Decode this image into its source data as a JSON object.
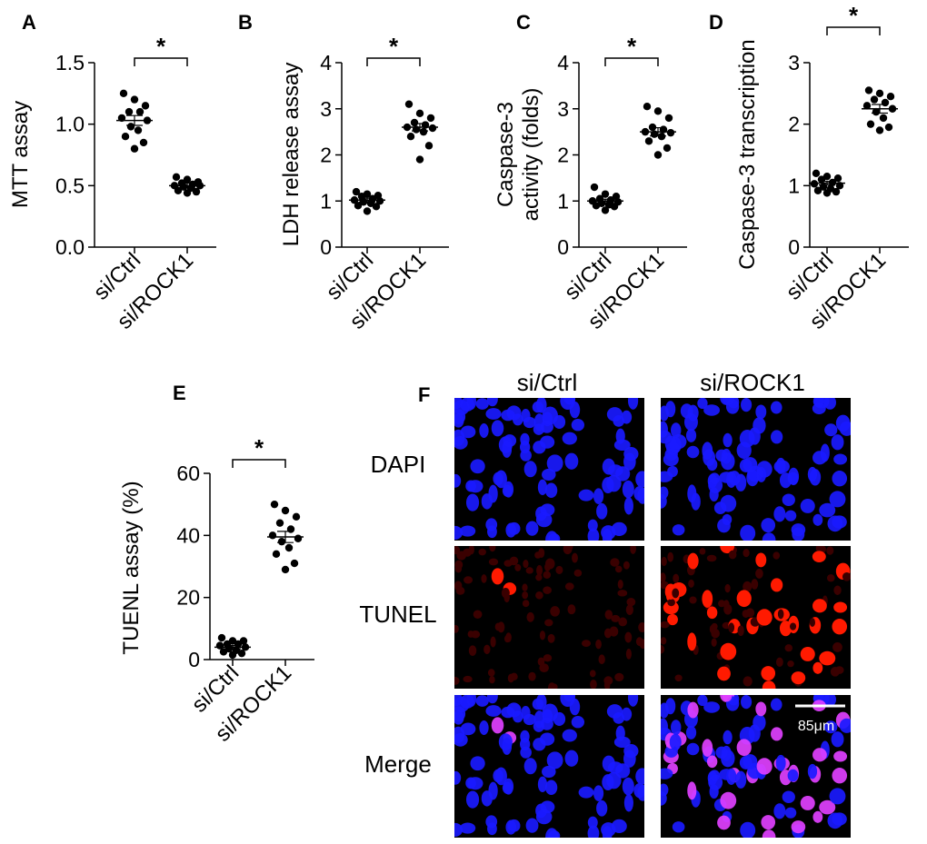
{
  "chart_data": [
    {
      "panel": "A",
      "type": "scatter",
      "ylabel": "MTT assay",
      "ylim": [
        0,
        1.5
      ],
      "yticks": [
        "0.0",
        "0.5",
        "1.0",
        "1.5"
      ],
      "ytick_values": [
        0,
        0.5,
        1.0,
        1.5
      ],
      "categories": [
        "si/Ctrl",
        "si/ROCK1"
      ],
      "significance": "*",
      "series": [
        {
          "category": "si/Ctrl",
          "mean": 1.03,
          "sem": 0.04,
          "values": [
            1.25,
            1.2,
            1.15,
            1.1,
            1.1,
            1.05,
            1.03,
            0.98,
            0.95,
            0.9,
            0.85,
            0.8
          ]
        },
        {
          "category": "si/ROCK1",
          "mean": 0.5,
          "sem": 0.02,
          "values": [
            0.57,
            0.55,
            0.53,
            0.52,
            0.51,
            0.5,
            0.5,
            0.49,
            0.48,
            0.46,
            0.45,
            0.44
          ]
        }
      ]
    },
    {
      "panel": "B",
      "type": "scatter",
      "ylabel": "LDH release assay",
      "ylim": [
        0,
        4
      ],
      "yticks": [
        "0",
        "1",
        "2",
        "3",
        "4"
      ],
      "ytick_values": [
        0,
        1,
        2,
        3,
        4
      ],
      "categories": [
        "si/Ctrl",
        "si/ROCK1"
      ],
      "significance": "*",
      "series": [
        {
          "category": "si/Ctrl",
          "mean": 1.02,
          "sem": 0.04,
          "values": [
            1.2,
            1.15,
            1.12,
            1.1,
            1.05,
            1.02,
            1.0,
            0.98,
            0.95,
            0.9,
            0.88,
            0.78
          ]
        },
        {
          "category": "si/ROCK1",
          "mean": 2.6,
          "sem": 0.08,
          "values": [
            3.1,
            2.9,
            2.8,
            2.7,
            2.65,
            2.6,
            2.58,
            2.55,
            2.5,
            2.4,
            2.2,
            1.9
          ]
        }
      ]
    },
    {
      "panel": "C",
      "type": "scatter",
      "ylabel": "Caspase-3 activity (folds)",
      "ylabel_lines": [
        "Caspase-3",
        "activity (folds)"
      ],
      "ylim": [
        0,
        4
      ],
      "yticks": [
        "0",
        "1",
        "2",
        "3",
        "4"
      ],
      "ytick_values": [
        0,
        1,
        2,
        3,
        4
      ],
      "categories": [
        "si/Ctrl",
        "si/ROCK1"
      ],
      "significance": "*",
      "series": [
        {
          "category": "si/Ctrl",
          "mean": 1.0,
          "sem": 0.04,
          "values": [
            1.3,
            1.15,
            1.1,
            1.05,
            1.02,
            1.0,
            0.98,
            0.95,
            0.92,
            0.9,
            0.88,
            0.8
          ]
        },
        {
          "category": "si/ROCK1",
          "mean": 2.5,
          "sem": 0.09,
          "values": [
            3.05,
            2.95,
            2.8,
            2.6,
            2.55,
            2.5,
            2.48,
            2.45,
            2.4,
            2.3,
            2.15,
            2.0
          ]
        }
      ]
    },
    {
      "panel": "D",
      "type": "scatter",
      "ylabel": "Caspase-3 transcription",
      "ylim": [
        0,
        3
      ],
      "yticks": [
        "0",
        "1",
        "2",
        "3"
      ],
      "ytick_values": [
        0,
        1,
        2,
        3
      ],
      "categories": [
        "si/Ctrl",
        "si/ROCK1"
      ],
      "significance": "*",
      "series": [
        {
          "category": "si/Ctrl",
          "mean": 1.04,
          "sem": 0.03,
          "values": [
            1.2,
            1.15,
            1.12,
            1.1,
            1.05,
            1.03,
            1.0,
            0.98,
            0.95,
            0.92,
            0.9,
            0.88
          ]
        },
        {
          "category": "si/ROCK1",
          "mean": 2.25,
          "sem": 0.07,
          "values": [
            2.55,
            2.5,
            2.45,
            2.4,
            2.35,
            2.3,
            2.25,
            2.2,
            2.1,
            2.0,
            1.95,
            1.9
          ]
        }
      ]
    },
    {
      "panel": "E",
      "type": "scatter",
      "ylabel": "TUENL  assay (%)",
      "ylim": [
        0,
        60
      ],
      "yticks": [
        "0",
        "20",
        "40",
        "60"
      ],
      "ytick_values": [
        0,
        20,
        40,
        60
      ],
      "categories": [
        "si/Ctrl",
        "si/ROCK1"
      ],
      "significance": "*",
      "series": [
        {
          "category": "si/Ctrl",
          "mean": 4.0,
          "sem": 0.5,
          "values": [
            7,
            6,
            6,
            5,
            5,
            4.5,
            4,
            3.5,
            3,
            2.5,
            2,
            1.5
          ]
        },
        {
          "category": "si/ROCK1",
          "mean": 39.5,
          "sem": 1.8,
          "values": [
            50,
            48,
            46,
            44,
            42,
            40,
            39,
            38,
            36,
            34,
            31,
            29
          ]
        }
      ]
    }
  ],
  "panel_f": {
    "letter": "F",
    "columns": [
      "si/Ctrl",
      "si/ROCK1"
    ],
    "rows": [
      "DAPI",
      "TUNEL",
      "Merge"
    ],
    "scale_bar": "85μm",
    "colors": {
      "dapi": "#1a1aff",
      "tunel": "#ff1a00",
      "merge_overlap": "#e040ff",
      "background": "#000000"
    },
    "tunel_density": {
      "si/Ctrl": "sparse",
      "si/ROCK1": "dense"
    }
  }
}
